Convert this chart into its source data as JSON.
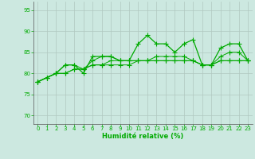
{
  "xlabel": "Humidité relative (%)",
  "ylim": [
    68,
    97
  ],
  "xlim": [
    -0.5,
    23.5
  ],
  "yticks": [
    70,
    75,
    80,
    85,
    90,
    95
  ],
  "xticks": [
    0,
    1,
    2,
    3,
    4,
    5,
    6,
    7,
    8,
    9,
    10,
    11,
    12,
    13,
    14,
    15,
    16,
    17,
    18,
    19,
    20,
    21,
    22,
    23
  ],
  "bg_color": "#cce8e0",
  "grid_color": "#b0c8c0",
  "line_color": "#00aa00",
  "line1": [
    78,
    79,
    80,
    80,
    81,
    81,
    82,
    82,
    82,
    82,
    82,
    83,
    83,
    83,
    83,
    83,
    83,
    83,
    82,
    82,
    83,
    83,
    83,
    83
  ],
  "line2": [
    78,
    79,
    80,
    80,
    81,
    81,
    82,
    82,
    83,
    83,
    83,
    83,
    83,
    84,
    84,
    84,
    84,
    83,
    82,
    82,
    84,
    85,
    85,
    83
  ],
  "line3": [
    78,
    79,
    80,
    82,
    82,
    80,
    84,
    84,
    84,
    83,
    83,
    87,
    89,
    87,
    87,
    85,
    87,
    88,
    82,
    82,
    86,
    87,
    87,
    83
  ],
  "line4": [
    78,
    79,
    80,
    82,
    82,
    81,
    83,
    84,
    84,
    83,
    83,
    83,
    83,
    83,
    83,
    83,
    83,
    83,
    82,
    82,
    83,
    83,
    83,
    83
  ]
}
